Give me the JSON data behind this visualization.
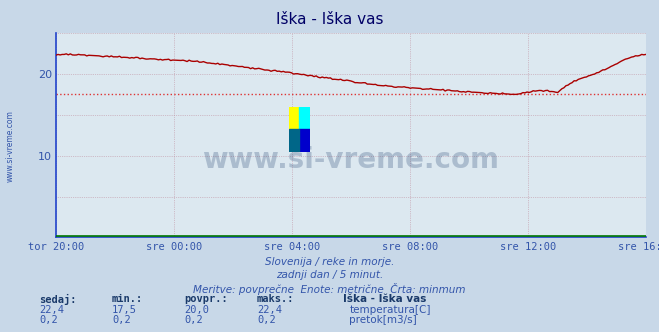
{
  "title": "Iška - Iška vas",
  "bg_color": "#c8d8e8",
  "plot_bg_color": "#dce8f0",
  "grid_color": "#c090a0",
  "axis_color": "#2244cc",
  "xlabel_color": "#3355aa",
  "title_color": "#000066",
  "x_labels": [
    "tor 20:00",
    "sre 00:00",
    "sre 04:00",
    "sre 08:00",
    "sre 12:00",
    "sre 16:00"
  ],
  "x_ticks_norm": [
    0.0,
    0.2,
    0.4,
    0.6,
    0.8,
    1.0
  ],
  "ylim": [
    0,
    25
  ],
  "y_ticks": [
    10,
    20
  ],
  "temp_color": "#aa0000",
  "flow_color": "#007700",
  "avg_line_value": 17.5,
  "avg_line_color": "#dd3333",
  "watermark_color": "#1a3a6a",
  "watermark_alpha": 0.25,
  "footer_color": "#3355aa",
  "footer_line1": "Slovenija / reke in morje.",
  "footer_line2": "zadnji dan / 5 minut.",
  "footer_line3": "Meritve: povprečne  Enote: metrične  Črta: minmum",
  "table_headers": [
    "sedaj:",
    "min.:",
    "povpr.:",
    "maks.:"
  ],
  "table_row1": [
    "22,4",
    "17,5",
    "20,0",
    "22,4"
  ],
  "table_row2": [
    "0,2",
    "0,2",
    "0,2",
    "0,2"
  ],
  "legend_title": "Iška - Iška vas",
  "legend_temp_label": "temperatura[C]",
  "legend_flow_label": "pretok[m3/s]",
  "side_label": "www.si-vreme.com",
  "n_points": 289
}
